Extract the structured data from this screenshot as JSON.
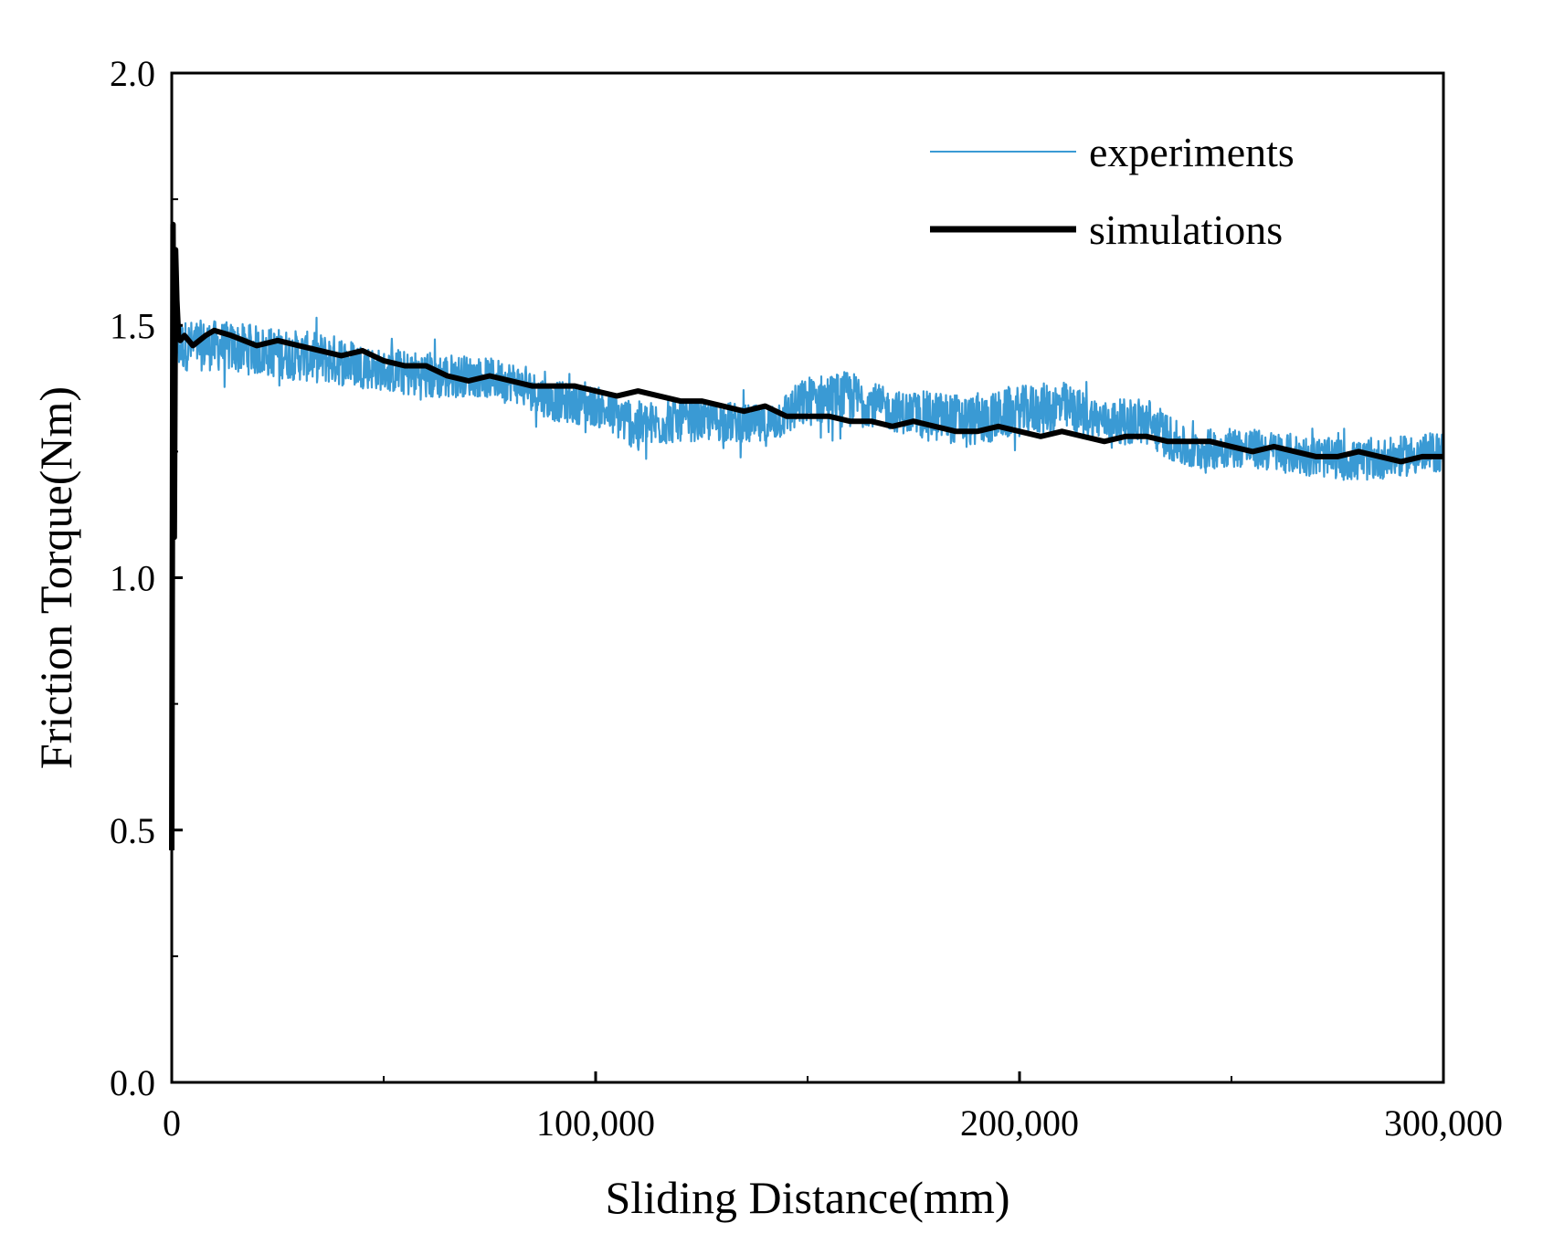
{
  "chart_data": {
    "type": "line",
    "title": "",
    "xlabel": "Sliding Distance(mm)",
    "ylabel": "Friction Torque(Nm)",
    "xlim": [
      0,
      300000
    ],
    "ylim": [
      0.0,
      2.0
    ],
    "x_ticks": [
      0,
      100000,
      200000,
      300000
    ],
    "x_tick_labels": [
      "0",
      "100,000",
      "200,000",
      "300,000"
    ],
    "x_minor_ticks": [
      50000,
      150000,
      250000
    ],
    "y_ticks": [
      0.0,
      0.5,
      1.0,
      1.5,
      2.0
    ],
    "y_tick_labels": [
      "0.0",
      "0.5",
      "1.0",
      "1.5",
      "2.0"
    ],
    "y_minor_ticks": [
      0.25,
      0.75,
      1.25,
      1.75
    ],
    "grid": false,
    "legend_position": "top-right",
    "series": [
      {
        "name": "experiments",
        "color": "#3a9ad4",
        "style": "noisy-band",
        "x": [
          0,
          10000,
          20000,
          30000,
          40000,
          50000,
          60000,
          70000,
          80000,
          90000,
          100000,
          110000,
          120000,
          130000,
          140000,
          150000,
          160000,
          170000,
          180000,
          190000,
          200000,
          210000,
          220000,
          230000,
          240000,
          250000,
          260000,
          270000,
          280000,
          290000,
          300000
        ],
        "y": [
          1.46,
          1.46,
          1.45,
          1.44,
          1.43,
          1.41,
          1.4,
          1.4,
          1.39,
          1.35,
          1.34,
          1.3,
          1.31,
          1.31,
          1.3,
          1.35,
          1.36,
          1.33,
          1.32,
          1.31,
          1.33,
          1.34,
          1.31,
          1.31,
          1.25,
          1.26,
          1.25,
          1.24,
          1.23,
          1.24,
          1.25
        ],
        "noise": [
          0.05,
          0.05,
          0.05,
          0.05,
          0.05,
          0.04,
          0.05,
          0.04,
          0.04,
          0.04,
          0.04,
          0.05,
          0.04,
          0.04,
          0.04,
          0.05,
          0.05,
          0.04,
          0.05,
          0.05,
          0.05,
          0.05,
          0.04,
          0.05,
          0.04,
          0.04,
          0.04,
          0.04,
          0.04,
          0.04,
          0.04
        ]
      },
      {
        "name": "simulations",
        "color": "#000000",
        "style": "line",
        "x": [
          0,
          300,
          600,
          900,
          1200,
          1600,
          2000,
          3000,
          5000,
          8000,
          10000,
          14000,
          17000,
          20000,
          25000,
          30000,
          35000,
          40000,
          45000,
          50000,
          55000,
          60000,
          65000,
          70000,
          75000,
          80000,
          85000,
          90000,
          95000,
          100000,
          105000,
          110000,
          115000,
          120000,
          125000,
          130000,
          135000,
          140000,
          145000,
          150000,
          155000,
          160000,
          165000,
          170000,
          175000,
          180000,
          185000,
          190000,
          195000,
          200000,
          205000,
          210000,
          215000,
          220000,
          225000,
          230000,
          235000,
          240000,
          245000,
          250000,
          255000,
          260000,
          265000,
          270000,
          275000,
          280000,
          285000,
          290000,
          295000,
          300000
        ],
        "y": [
          0.46,
          1.7,
          1.08,
          1.65,
          1.55,
          1.48,
          1.47,
          1.48,
          1.46,
          1.48,
          1.49,
          1.48,
          1.47,
          1.46,
          1.47,
          1.46,
          1.45,
          1.44,
          1.45,
          1.43,
          1.42,
          1.42,
          1.4,
          1.39,
          1.4,
          1.39,
          1.38,
          1.38,
          1.38,
          1.37,
          1.36,
          1.37,
          1.36,
          1.35,
          1.35,
          1.34,
          1.33,
          1.34,
          1.32,
          1.32,
          1.32,
          1.31,
          1.31,
          1.3,
          1.31,
          1.3,
          1.29,
          1.29,
          1.3,
          1.29,
          1.28,
          1.29,
          1.28,
          1.27,
          1.28,
          1.28,
          1.27,
          1.27,
          1.27,
          1.26,
          1.25,
          1.26,
          1.25,
          1.24,
          1.24,
          1.25,
          1.24,
          1.23,
          1.24,
          1.24
        ]
      }
    ]
  }
}
